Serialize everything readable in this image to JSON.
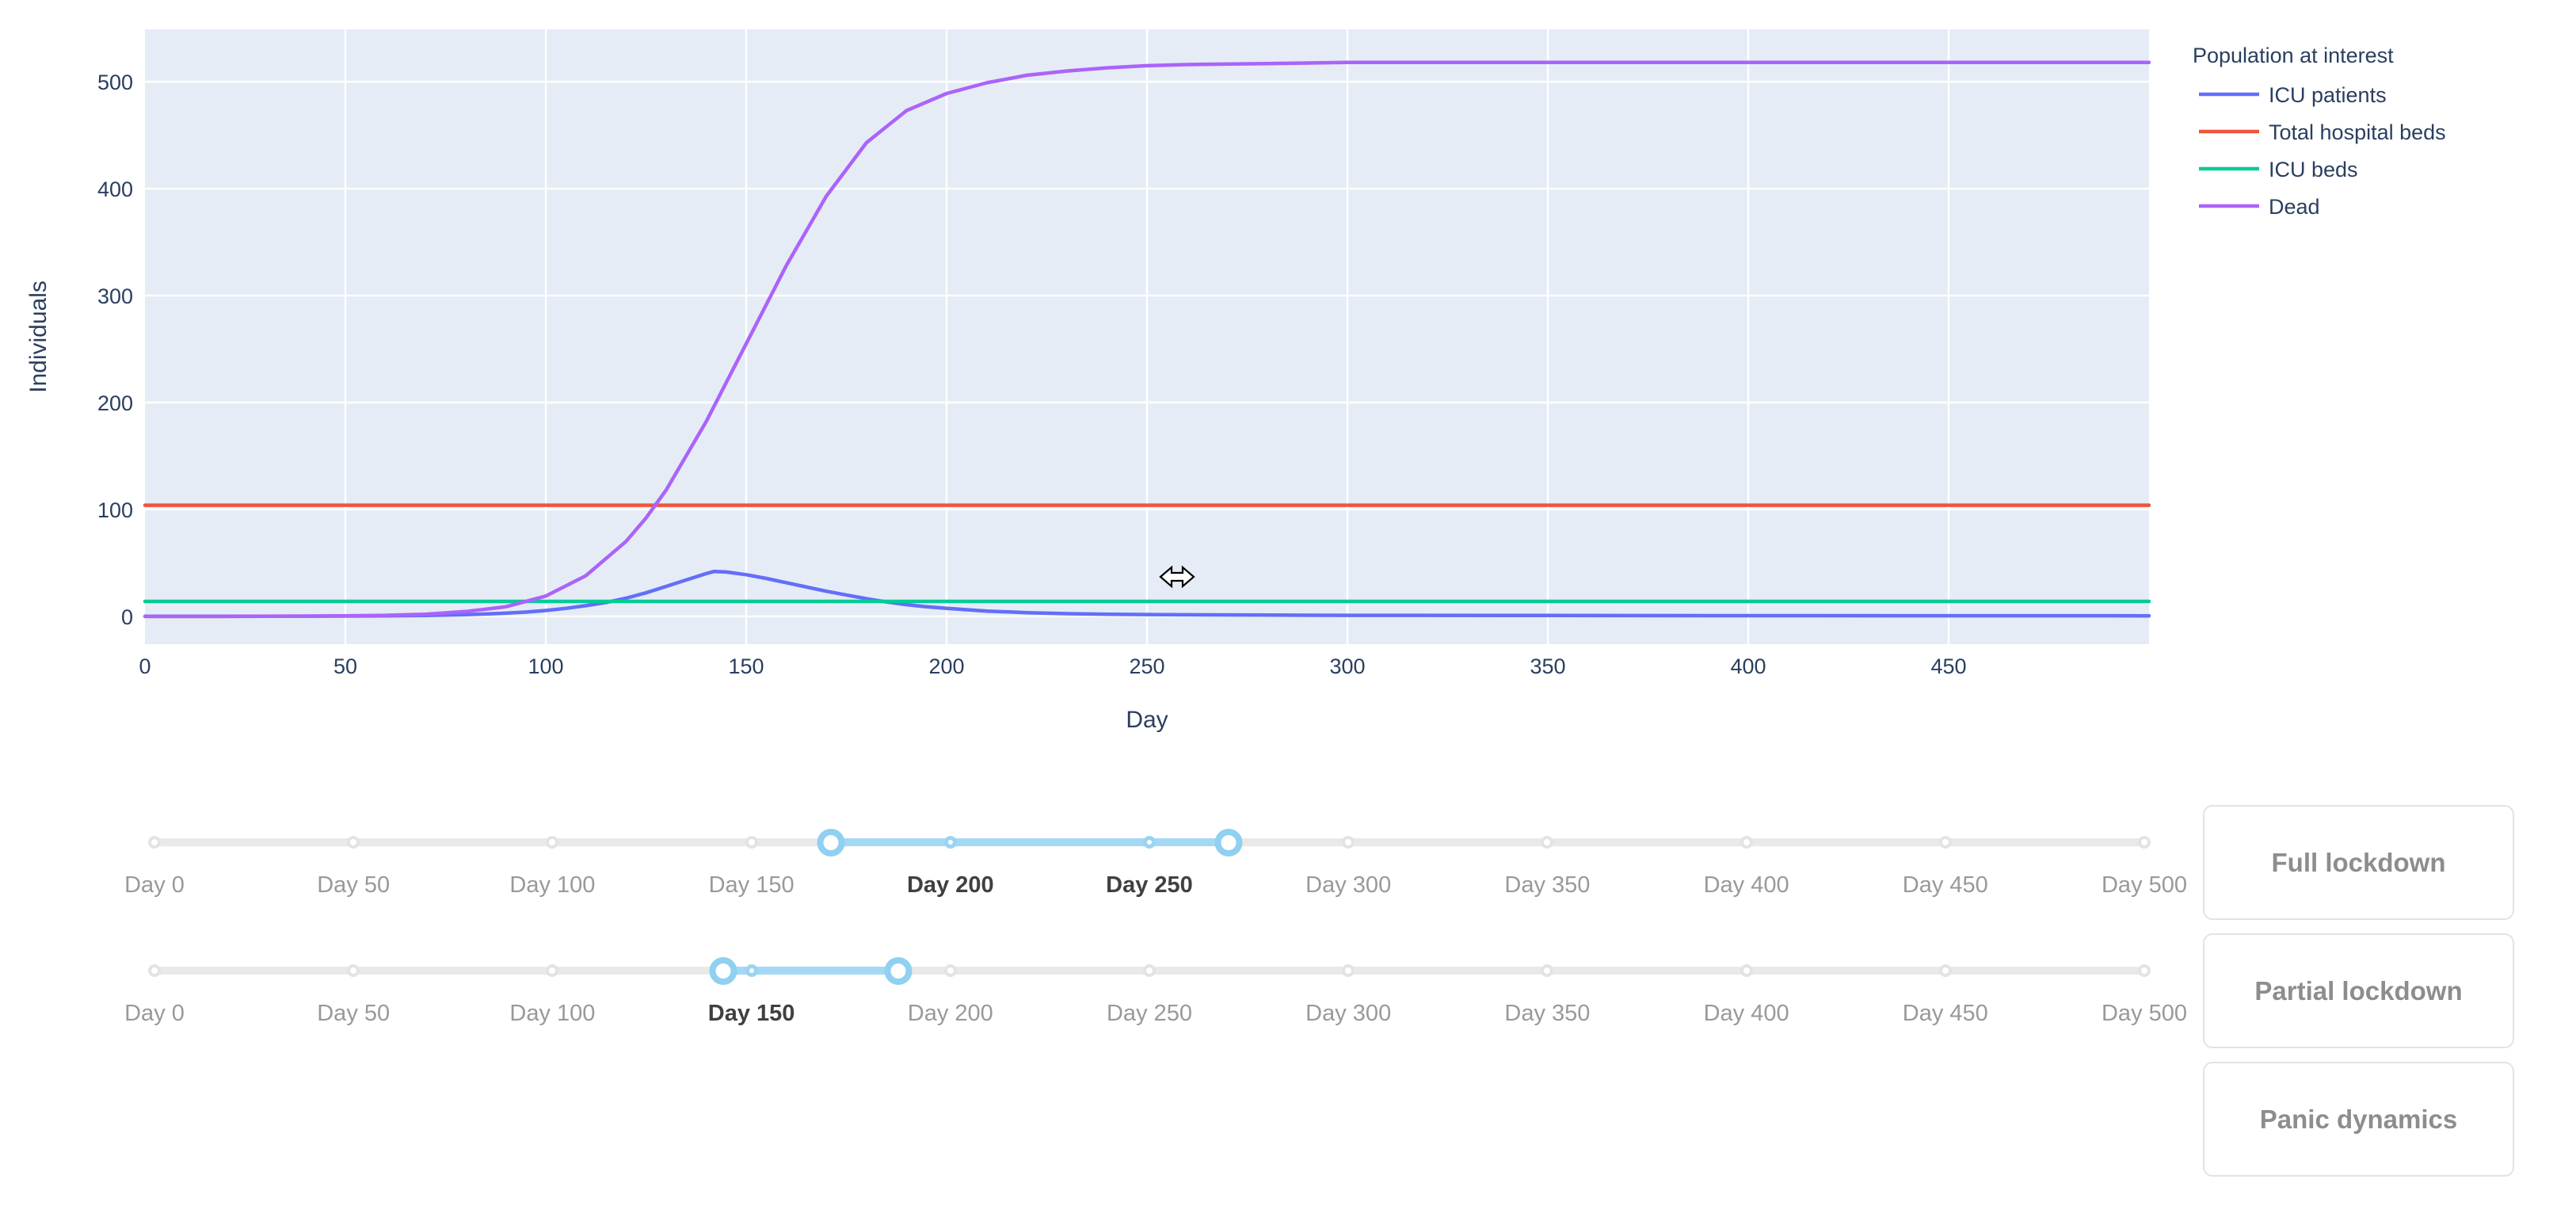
{
  "chart_data": {
    "type": "line",
    "title": "",
    "legend_title": "Population at interest",
    "legend_position": "right",
    "xlabel": "Day",
    "ylabel": "Individuals",
    "xlim": [
      0,
      500
    ],
    "ylim": [
      -26,
      549
    ],
    "x_ticks": [
      0,
      50,
      100,
      150,
      200,
      250,
      300,
      350,
      400,
      450
    ],
    "y_ticks": [
      0,
      100,
      200,
      300,
      400,
      500
    ],
    "grid": true,
    "plot_bg": "#e5ecf6",
    "grid_color": "#ffffff",
    "text_color": "#2a3f5f",
    "series": [
      {
        "name": "ICU patients",
        "color": "#636efa",
        "x": [
          0,
          20,
          40,
          50,
          60,
          70,
          80,
          85,
          90,
          95,
          100,
          105,
          110,
          115,
          120,
          125,
          130,
          135,
          140,
          142,
          145,
          150,
          155,
          160,
          165,
          170,
          175,
          180,
          185,
          190,
          195,
          200,
          210,
          220,
          230,
          240,
          250,
          260,
          280,
          300,
          350,
          400,
          450,
          500
        ],
        "y": [
          0,
          0,
          0.2,
          0.3,
          0.5,
          0.9,
          1.6,
          2.2,
          3,
          4,
          5.5,
          7.5,
          10,
          13,
          17,
          22,
          28,
          34,
          40,
          42,
          41.5,
          39,
          35.5,
          31.5,
          27.5,
          23.5,
          20,
          16.5,
          13.5,
          11,
          9,
          7.5,
          5,
          3.5,
          2.5,
          2,
          1.7,
          1.5,
          1.2,
          1,
          0.8,
          0.7,
          0.6,
          0.5
        ]
      },
      {
        "name": "Total hospital beds",
        "color": "#ef553b",
        "x": [
          0,
          500
        ],
        "y": [
          104,
          104
        ]
      },
      {
        "name": "ICU beds",
        "color": "#00cc96",
        "x": [
          0,
          500
        ],
        "y": [
          14,
          14
        ]
      },
      {
        "name": "Dead",
        "color": "#ab63fa",
        "x": [
          0,
          20,
          40,
          50,
          60,
          70,
          80,
          90,
          100,
          110,
          120,
          125,
          130,
          140,
          150,
          160,
          170,
          180,
          190,
          200,
          210,
          220,
          230,
          240,
          250,
          260,
          280,
          300,
          350,
          400,
          450,
          500
        ],
        "y": [
          0,
          0,
          0.2,
          0.5,
          1,
          2,
          4.5,
          9,
          19,
          38,
          70,
          92,
          118,
          182,
          255,
          328,
          393,
          443,
          473,
          489,
          499,
          506,
          510,
          513,
          515,
          516,
          517,
          518,
          518,
          518,
          518,
          518
        ]
      }
    ]
  },
  "sliders": [
    {
      "id": "full-lockdown-range-slider",
      "min": 0,
      "max": 500,
      "value": [
        170,
        270
      ],
      "mark_values": [
        0,
        50,
        100,
        150,
        200,
        250,
        300,
        350,
        400,
        450,
        500
      ],
      "mark_labels": [
        "Day 0",
        "Day 50",
        "Day 100",
        "Day 150",
        "Day 200",
        "Day 250",
        "Day 300",
        "Day 350",
        "Day 400",
        "Day 450",
        "Day 500"
      ]
    },
    {
      "id": "partial-lockdown-range-slider",
      "min": 0,
      "max": 500,
      "value": [
        143,
        187
      ],
      "mark_values": [
        0,
        50,
        100,
        150,
        200,
        250,
        300,
        350,
        400,
        450,
        500
      ],
      "mark_labels": [
        "Day 0",
        "Day 50",
        "Day 100",
        "Day 150",
        "Day 200",
        "Day 250",
        "Day 300",
        "Day 350",
        "Day 400",
        "Day 450",
        "Day 500"
      ]
    }
  ],
  "buttons": [
    {
      "label": "Full lockdown"
    },
    {
      "label": "Partial lockdown"
    },
    {
      "label": "Panic dynamics"
    }
  ],
  "cursor": {
    "shape": "horizontal-resize-arrow"
  }
}
